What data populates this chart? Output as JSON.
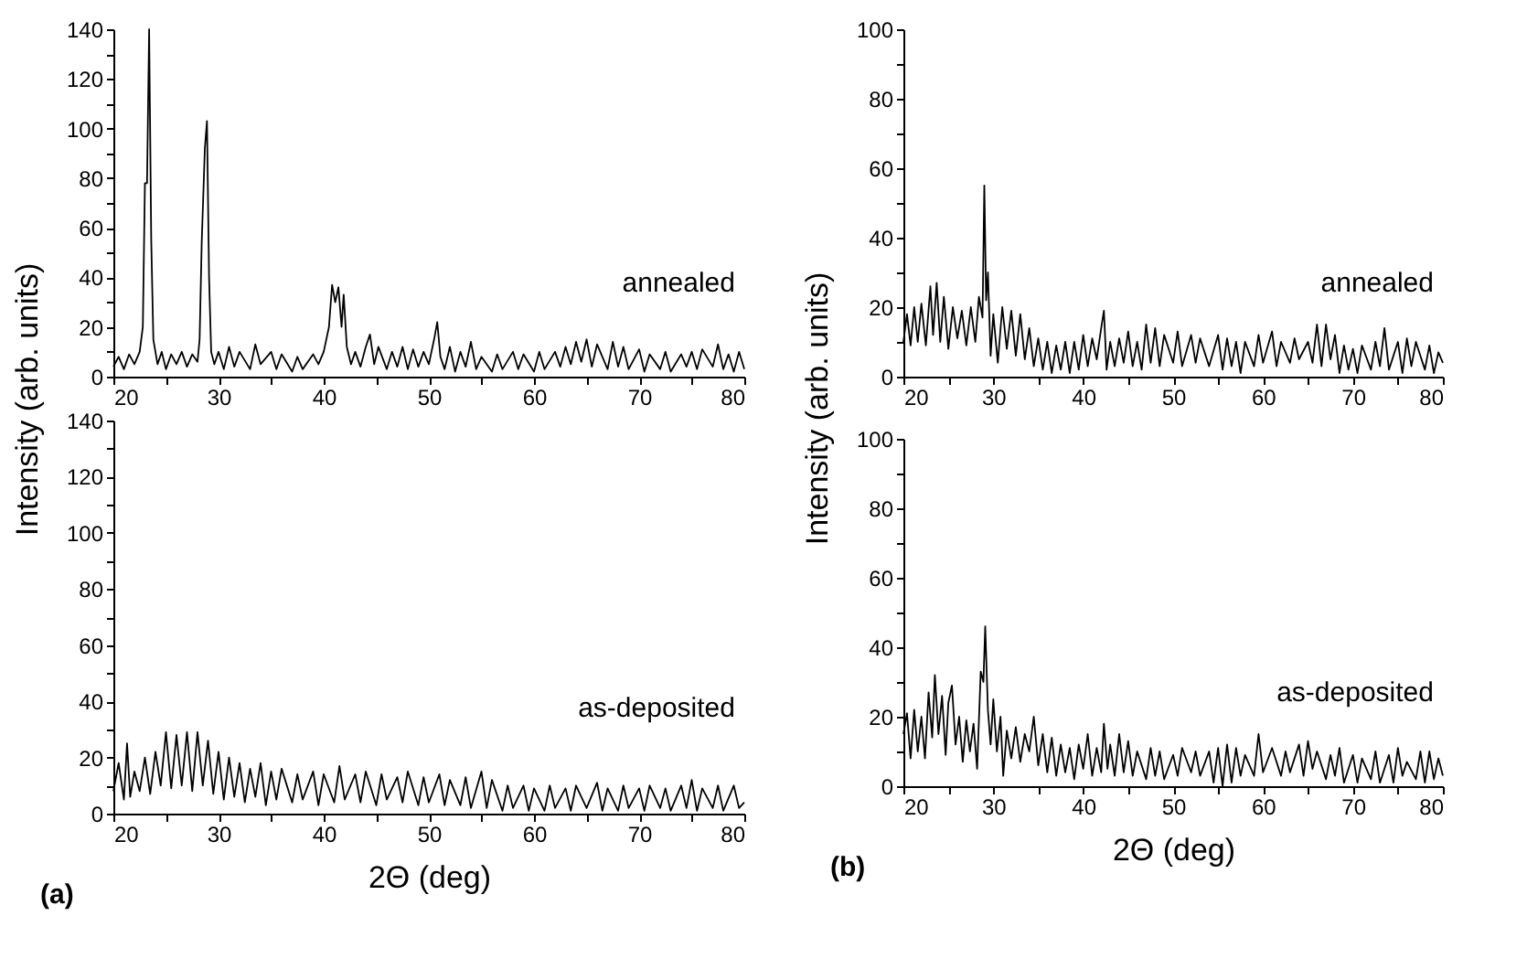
{
  "chart_data": [
    {
      "type": "line",
      "color": "#000000",
      "ylabel": "Intensity (arb. units)",
      "annotations": [
        "annealed"
      ],
      "xlim": [
        20,
        80
      ],
      "ylim": [
        0,
        140
      ],
      "xticks": [
        20,
        {
          "value": 25,
          "label": null
        },
        30,
        {
          "value": 35,
          "label": null
        },
        40,
        {
          "value": 45,
          "label": null
        },
        50,
        {
          "value": 55,
          "label": null
        },
        60,
        {
          "value": 65,
          "label": null
        },
        70,
        {
          "value": 75,
          "label": null
        },
        80
      ],
      "yticks": [
        0,
        {
          "value": 10,
          "label": null
        },
        20,
        {
          "value": 30,
          "label": null
        },
        40,
        {
          "value": 50,
          "label": null
        },
        60,
        {
          "value": 70,
          "label": null
        },
        80,
        {
          "value": 90,
          "label": null
        },
        100,
        {
          "value": 110,
          "label": null
        },
        120,
        {
          "value": 130,
          "label": null
        },
        140
      ],
      "x": [
        20,
        20.5,
        21,
        21.5,
        22,
        22.5,
        22.8,
        23.0,
        23.2,
        23.4,
        23.6,
        23.8,
        24.2,
        24.6,
        25,
        25.5,
        26,
        26.5,
        27,
        27.5,
        28,
        28.2,
        28.4,
        28.7,
        28.9,
        29.1,
        29.3,
        29.6,
        30,
        30.5,
        31,
        31.5,
        32,
        33,
        33.5,
        34,
        35,
        35.5,
        36,
        37,
        37.5,
        38,
        39,
        39.5,
        40,
        40.5,
        40.8,
        41.1,
        41.4,
        41.7,
        41.9,
        42.2,
        42.6,
        43,
        43.5,
        44,
        44.4,
        44.8,
        45.2,
        46,
        46.5,
        47,
        47.5,
        48,
        48.5,
        49,
        49.5,
        50,
        50.5,
        50.8,
        51.1,
        51.5,
        52,
        52.5,
        53,
        53.5,
        54,
        54.5,
        55,
        56,
        56.5,
        57,
        58,
        58.5,
        59,
        60,
        60.5,
        61,
        62,
        62.5,
        63,
        63.5,
        64,
        64.5,
        65,
        65.5,
        66,
        67,
        67.5,
        68,
        68.5,
        69,
        70,
        70.5,
        71,
        72,
        72.5,
        73,
        74,
        74.5,
        75,
        75.5,
        76,
        77,
        77.5,
        78,
        78.5,
        79,
        79.5,
        80
      ],
      "values": [
        4,
        8,
        3,
        9,
        5,
        10,
        20,
        78,
        78,
        140,
        55,
        15,
        5,
        10,
        3,
        9,
        5,
        10,
        4,
        9,
        6,
        15,
        54,
        92,
        103,
        40,
        10,
        5,
        10,
        3,
        12,
        4,
        10,
        3,
        13,
        5,
        10,
        3,
        9,
        2,
        8,
        3,
        9,
        5,
        10,
        20,
        37,
        30,
        36,
        20,
        33,
        12,
        5,
        10,
        4,
        12,
        17,
        5,
        12,
        3,
        10,
        4,
        12,
        3,
        11,
        4,
        10,
        5,
        15,
        22,
        8,
        3,
        12,
        2,
        10,
        4,
        14,
        3,
        8,
        2,
        9,
        3,
        10,
        3,
        9,
        2,
        10,
        3,
        10,
        4,
        12,
        5,
        14,
        6,
        15,
        4,
        13,
        3,
        14,
        4,
        12,
        3,
        11,
        2,
        9,
        3,
        10,
        2,
        9,
        4,
        10,
        3,
        11,
        4,
        13,
        3,
        9,
        2,
        10,
        3
      ]
    },
    {
      "type": "line",
      "color": "#000000",
      "xlabel": "2Θ (deg)",
      "annotations": [
        "as-deposited",
        "(a)"
      ],
      "xlim": [
        20,
        80
      ],
      "ylim": [
        0,
        140
      ],
      "xticks": [
        20,
        {
          "value": 25,
          "label": null
        },
        30,
        {
          "value": 35,
          "label": null
        },
        40,
        {
          "value": 45,
          "label": null
        },
        50,
        {
          "value": 55,
          "label": null
        },
        60,
        {
          "value": 65,
          "label": null
        },
        70,
        {
          "value": 75,
          "label": null
        },
        80
      ],
      "yticks": [
        0,
        {
          "value": 10,
          "label": null
        },
        20,
        {
          "value": 30,
          "label": null
        },
        40,
        {
          "value": 50,
          "label": null
        },
        60,
        {
          "value": 70,
          "label": null
        },
        80,
        {
          "value": 90,
          "label": null
        },
        100,
        {
          "value": 110,
          "label": null
        },
        120,
        {
          "value": 130,
          "label": null
        },
        140
      ],
      "x": [
        20,
        20.5,
        21,
        21.3,
        21.6,
        22,
        22.5,
        23,
        23.5,
        24,
        24.5,
        25,
        25.5,
        26,
        26.5,
        27,
        27.5,
        28,
        28.5,
        29,
        29.5,
        30,
        30.5,
        31,
        31.5,
        32,
        32.5,
        33,
        33.5,
        34,
        34.5,
        35,
        35.5,
        36,
        37,
        37.5,
        38,
        39,
        39.5,
        40,
        41,
        41.5,
        42,
        43,
        43.5,
        44,
        45,
        45.5,
        46,
        47,
        47.5,
        48,
        49,
        49.5,
        50,
        51,
        51.5,
        52,
        53,
        53.5,
        54,
        55,
        55.5,
        56,
        57,
        57.5,
        58,
        59,
        59.5,
        60,
        61,
        61.5,
        62,
        63,
        63.5,
        64,
        65,
        66,
        66.5,
        67,
        68,
        68.5,
        69,
        70,
        70.5,
        71,
        72,
        72.5,
        73,
        74,
        74.5,
        75,
        75.5,
        76,
        77,
        77.5,
        78,
        79,
        79.5,
        80
      ],
      "values": [
        8,
        18,
        5,
        25,
        6,
        15,
        8,
        20,
        7,
        22,
        10,
        29,
        9,
        28,
        10,
        29,
        8,
        29,
        10,
        26,
        7,
        22,
        5,
        20,
        6,
        18,
        4,
        16,
        6,
        18,
        3,
        15,
        5,
        16,
        4,
        14,
        5,
        15,
        3,
        14,
        4,
        17,
        5,
        14,
        4,
        15,
        3,
        14,
        5,
        13,
        4,
        15,
        3,
        13,
        4,
        14,
        3,
        12,
        3,
        13,
        2,
        15,
        2,
        12,
        1,
        10,
        2,
        10,
        1,
        9,
        1,
        10,
        2,
        9,
        1,
        10,
        2,
        11,
        1,
        9,
        1,
        10,
        2,
        9,
        1,
        10,
        2,
        9,
        1,
        10,
        2,
        12,
        1,
        9,
        2,
        10,
        1,
        10,
        2,
        4
      ]
    },
    {
      "type": "line",
      "color": "#000000",
      "ylabel": "Intensity (arb. units)",
      "annotations": [
        "annealed"
      ],
      "xlim": [
        20,
        80
      ],
      "ylim": [
        0,
        100
      ],
      "xticks": [
        20,
        {
          "value": 25,
          "label": null
        },
        30,
        {
          "value": 35,
          "label": null
        },
        40,
        {
          "value": 45,
          "label": null
        },
        50,
        {
          "value": 55,
          "label": null
        },
        60,
        {
          "value": 65,
          "label": null
        },
        70,
        {
          "value": 75,
          "label": null
        },
        80
      ],
      "yticks": [
        0,
        {
          "value": 10,
          "label": null
        },
        20,
        {
          "value": 30,
          "label": null
        },
        40,
        {
          "value": 50,
          "label": null
        },
        60,
        {
          "value": 70,
          "label": null
        },
        80,
        {
          "value": 90,
          "label": null
        },
        100
      ],
      "x": [
        20,
        20.4,
        20.8,
        21.2,
        21.6,
        22,
        22.5,
        23,
        23.3,
        23.7,
        24.1,
        24.5,
        25,
        25.5,
        26,
        26.5,
        27,
        27.5,
        28,
        28.4,
        28.8,
        29.0,
        29.2,
        29.4,
        29.7,
        30,
        30.5,
        31,
        31.5,
        32,
        32.5,
        33,
        33.5,
        34,
        34.5,
        35,
        35.5,
        36,
        36.5,
        37,
        37.5,
        38,
        38.5,
        39,
        39.5,
        40,
        40.5,
        41,
        41.5,
        42,
        42.3,
        42.6,
        43,
        43.5,
        44,
        44.5,
        45,
        45.5,
        46,
        46.5,
        47,
        47.5,
        48,
        48.5,
        49,
        50,
        50.5,
        51,
        52,
        52.5,
        53,
        54,
        55,
        55.5,
        56,
        56.5,
        57,
        57.5,
        58,
        59,
        59.5,
        60,
        61,
        61.5,
        62,
        63,
        63.5,
        64,
        65,
        65.5,
        66,
        66.5,
        67,
        67.5,
        68,
        68.5,
        69,
        69.5,
        70,
        70.5,
        71,
        72,
        72.5,
        73,
        73.5,
        74,
        75,
        75.5,
        76,
        76.5,
        77,
        78,
        78.5,
        79,
        79.5,
        80
      ],
      "values": [
        10,
        18,
        9,
        20,
        10,
        21,
        9,
        26,
        12,
        27,
        10,
        23,
        8,
        20,
        11,
        19,
        9,
        20,
        10,
        23,
        17,
        55,
        22,
        30,
        6,
        18,
        4,
        20,
        8,
        19,
        6,
        18,
        5,
        14,
        3,
        11,
        2,
        10,
        1,
        9,
        2,
        10,
        1,
        10,
        2,
        12,
        3,
        11,
        5,
        14,
        19,
        2,
        10,
        3,
        11,
        4,
        13,
        3,
        10,
        2,
        15,
        4,
        14,
        3,
        12,
        4,
        13,
        3,
        12,
        4,
        11,
        3,
        12,
        2,
        11,
        3,
        10,
        1,
        10,
        3,
        12,
        4,
        13,
        3,
        10,
        4,
        11,
        5,
        10,
        4,
        15,
        3,
        15,
        5,
        12,
        1,
        9,
        2,
        8,
        1,
        9,
        2,
        10,
        3,
        14,
        2,
        10,
        1,
        11,
        3,
        10,
        2,
        9,
        1,
        7,
        4
      ]
    },
    {
      "type": "line",
      "color": "#000000",
      "xlabel": "2Θ (deg)",
      "annotations": [
        "as-deposited",
        "(b)"
      ],
      "xlim": [
        20,
        80
      ],
      "ylim": [
        0,
        100
      ],
      "xticks": [
        20,
        {
          "value": 25,
          "label": null
        },
        30,
        {
          "value": 35,
          "label": null
        },
        40,
        {
          "value": 45,
          "label": null
        },
        50,
        {
          "value": 55,
          "label": null
        },
        60,
        {
          "value": 65,
          "label": null
        },
        70,
        {
          "value": 75,
          "label": null
        },
        80
      ],
      "yticks": [
        0,
        {
          "value": 10,
          "label": null
        },
        20,
        {
          "value": 30,
          "label": null
        },
        40,
        {
          "value": 50,
          "label": null
        },
        60,
        {
          "value": 70,
          "label": null
        },
        80,
        {
          "value": 90,
          "label": null
        },
        100
      ],
      "x": [
        20,
        20.4,
        20.8,
        21.2,
        21.6,
        22,
        22.4,
        22.8,
        23.2,
        23.5,
        23.9,
        24.3,
        24.7,
        25,
        25.4,
        25.8,
        26.2,
        26.6,
        27,
        27.4,
        27.8,
        28.2,
        28.6,
        28.9,
        29.1,
        29.4,
        29.7,
        30,
        30.4,
        30.8,
        31.1,
        31.5,
        32,
        32.5,
        33,
        33.5,
        34,
        34.5,
        35,
        35.5,
        36,
        36.5,
        37,
        37.5,
        38,
        38.5,
        39,
        39.5,
        40,
        40.5,
        41,
        41.5,
        42,
        42.3,
        42.7,
        43,
        43.5,
        44,
        44.5,
        45,
        45.5,
        46,
        47,
        47.5,
        48,
        48.5,
        49,
        50,
        50.5,
        51,
        52,
        52.5,
        53,
        54,
        54.5,
        55,
        55.5,
        56,
        56.5,
        57,
        57.5,
        58,
        59,
        59.5,
        60,
        61,
        62,
        62.5,
        63,
        64,
        64.5,
        65,
        65.5,
        66,
        67,
        67.5,
        68,
        68.5,
        69,
        70,
        70.5,
        71,
        72,
        72.5,
        73,
        74,
        74.5,
        75,
        75.5,
        76,
        77,
        77.5,
        78,
        78.5,
        79,
        79.5,
        80
      ],
      "values": [
        15,
        21,
        8,
        22,
        10,
        20,
        8,
        27,
        14,
        32,
        15,
        26,
        9,
        24,
        29,
        12,
        20,
        7,
        19,
        10,
        18,
        5,
        33,
        30,
        46,
        22,
        12,
        25,
        10,
        20,
        3,
        16,
        8,
        17,
        7,
        15,
        10,
        20,
        6,
        15,
        4,
        14,
        3,
        12,
        4,
        11,
        2,
        12,
        5,
        15,
        3,
        11,
        4,
        18,
        5,
        12,
        3,
        15,
        4,
        13,
        3,
        10,
        2,
        11,
        3,
        10,
        2,
        9,
        3,
        11,
        4,
        10,
        3,
        10,
        1,
        11,
        0,
        12,
        1,
        11,
        3,
        9,
        3,
        15,
        4,
        11,
        3,
        10,
        4,
        12,
        3,
        13,
        5,
        10,
        2,
        9,
        3,
        11,
        1,
        9,
        1,
        8,
        2,
        10,
        1,
        9,
        1,
        11,
        3,
        7,
        2,
        10,
        1,
        10,
        2,
        8,
        3
      ]
    }
  ]
}
